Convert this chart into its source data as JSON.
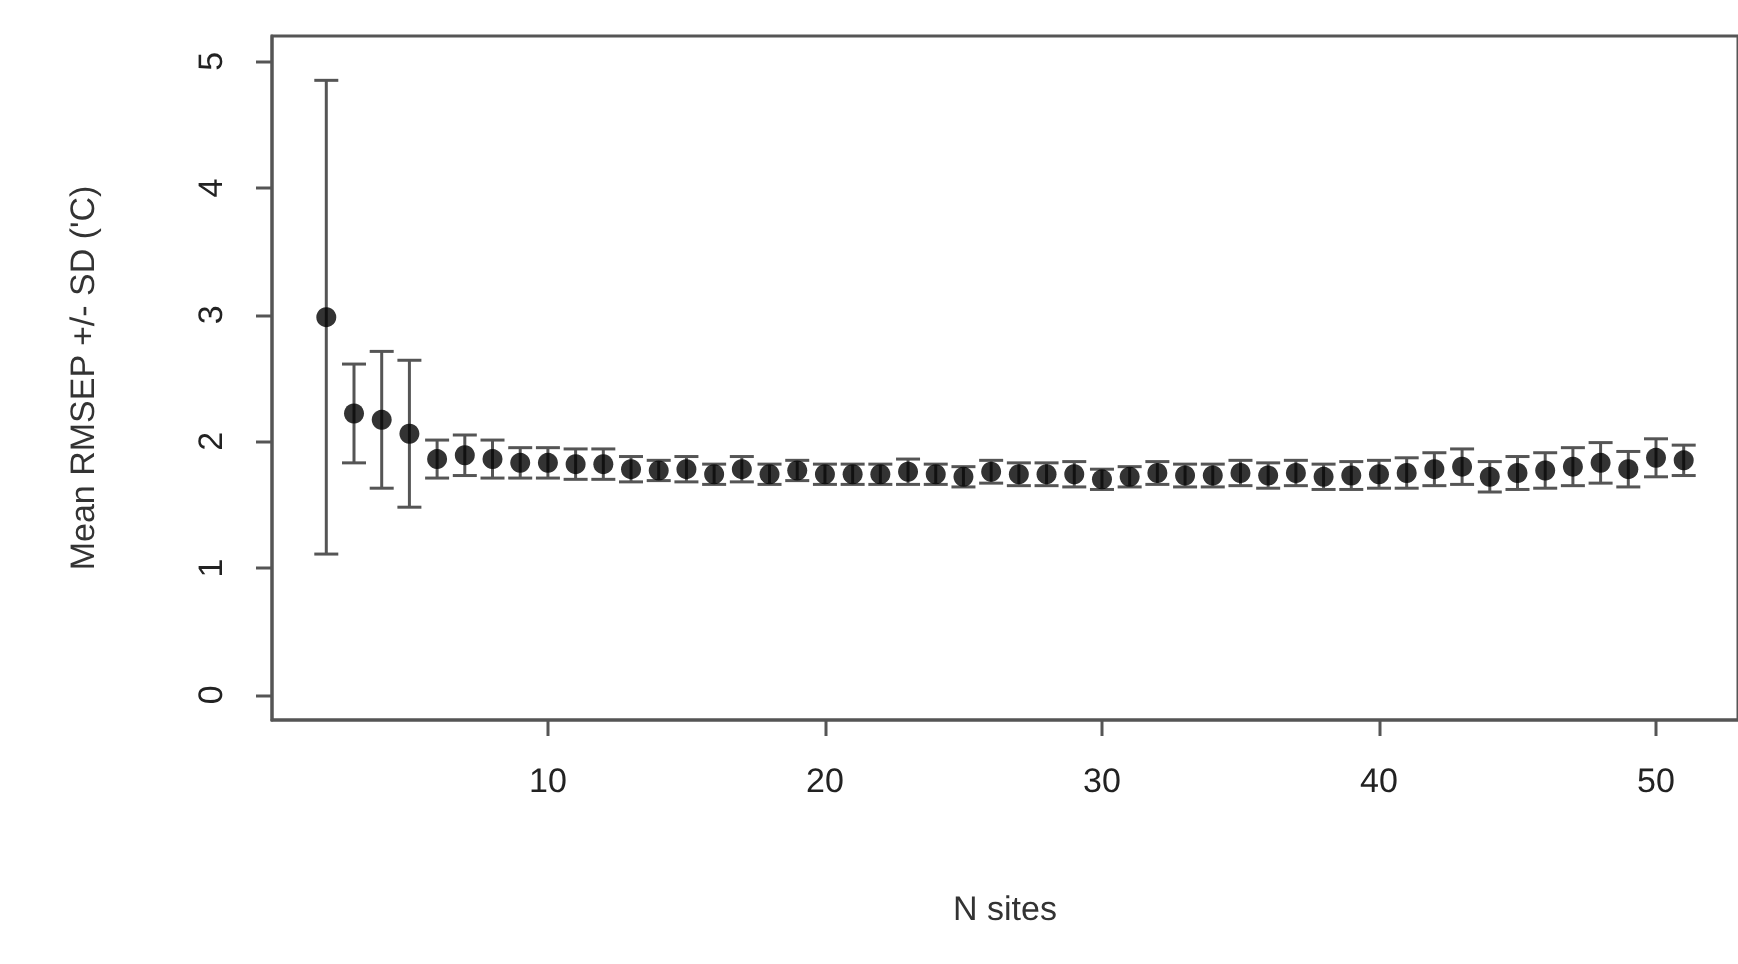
{
  "chart_data": {
    "type": "scatter",
    "xlabel": "N sites",
    "ylabel": "Mean RMSEP +/- SD ('C)",
    "x": [
      2,
      3,
      4,
      5,
      6,
      7,
      8,
      9,
      10,
      11,
      12,
      13,
      14,
      15,
      16,
      17,
      18,
      19,
      20,
      21,
      22,
      23,
      24,
      25,
      26,
      27,
      28,
      29,
      30,
      31,
      32,
      33,
      34,
      35,
      36,
      37,
      38,
      39,
      40,
      41,
      42,
      43,
      44,
      45,
      46,
      47,
      48,
      49,
      50,
      51
    ],
    "values": [
      2.98,
      2.22,
      2.17,
      2.06,
      1.86,
      1.89,
      1.86,
      1.83,
      1.83,
      1.82,
      1.82,
      1.78,
      1.77,
      1.78,
      1.74,
      1.78,
      1.74,
      1.77,
      1.74,
      1.74,
      1.74,
      1.76,
      1.74,
      1.72,
      1.76,
      1.74,
      1.74,
      1.74,
      1.7,
      1.72,
      1.75,
      1.73,
      1.73,
      1.75,
      1.73,
      1.75,
      1.72,
      1.73,
      1.74,
      1.75,
      1.78,
      1.8,
      1.72,
      1.75,
      1.77,
      1.8,
      1.83,
      1.78,
      1.87,
      1.85
    ],
    "errors": [
      1.87,
      0.39,
      0.54,
      0.58,
      0.15,
      0.16,
      0.15,
      0.12,
      0.12,
      0.12,
      0.12,
      0.1,
      0.08,
      0.1,
      0.08,
      0.1,
      0.08,
      0.08,
      0.08,
      0.08,
      0.08,
      0.1,
      0.08,
      0.08,
      0.09,
      0.09,
      0.09,
      0.1,
      0.08,
      0.08,
      0.09,
      0.09,
      0.09,
      0.1,
      0.1,
      0.1,
      0.1,
      0.11,
      0.11,
      0.12,
      0.13,
      0.14,
      0.12,
      0.13,
      0.14,
      0.15,
      0.16,
      0.14,
      0.15,
      0.12
    ],
    "color": "#000000",
    "marker": "circle",
    "xlim": [
      0.04,
      52.96
    ],
    "xticks": [
      10,
      20,
      30,
      40,
      50
    ],
    "ylim": [
      -0.2,
      5.2
    ],
    "yticks": [
      0,
      1,
      2,
      3,
      4,
      5
    ],
    "grid": false
  }
}
